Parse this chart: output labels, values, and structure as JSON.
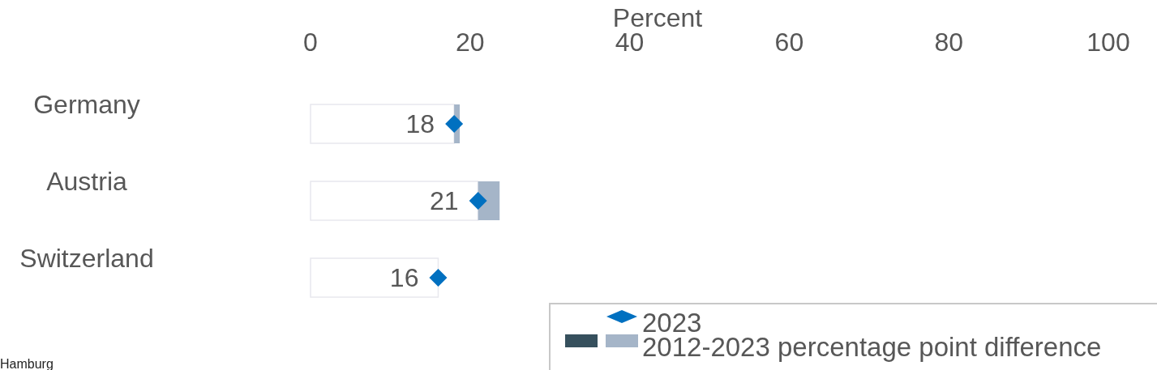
{
  "chart_data": {
    "type": "bar",
    "orientation": "horizontal",
    "stacked": true,
    "xlabel": "Percent",
    "categories": [
      "Germany",
      "Austria",
      "Switzerland"
    ],
    "series": [
      {
        "color": "#ffffff",
        "values": [
          18,
          21,
          16
        ]
      },
      {
        "name": "2012-2023 percentage point difference",
        "color": "#a5b5c8",
        "values": [
          0.7,
          2.7,
          null
        ]
      },
      {
        "color": "#36505d",
        "values": [
          null,
          null,
          null
        ]
      },
      {
        "name": "2023",
        "type": "scatter",
        "marker": "diamond",
        "color": "#0070c0",
        "values": [
          18,
          21,
          16
        ],
        "value_labels": [
          "18",
          "21",
          "16"
        ]
      }
    ],
    "xlim": [
      0,
      100
    ],
    "xticks": [
      0,
      20,
      40,
      60,
      80,
      100
    ],
    "grid": false,
    "legend": "bottom right",
    "annotations": [
      "Hamburg"
    ]
  }
}
